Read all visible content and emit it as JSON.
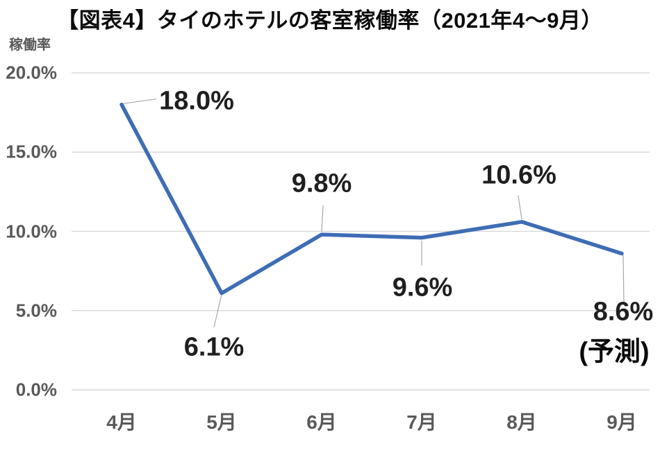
{
  "chart_data": {
    "type": "line",
    "title": "【図表4】タイのホテルの客室稼働率（2021年4〜9月）",
    "ylabel": "稼働率",
    "xlabel": "",
    "categories": [
      "4月",
      "5月",
      "6月",
      "7月",
      "8月",
      "9月"
    ],
    "values": [
      18.0,
      6.1,
      9.8,
      9.6,
      10.6,
      8.6
    ],
    "data_labels": [
      "18.0%",
      "6.1%",
      "9.8%",
      "9.6%",
      "10.6%",
      "8.6%"
    ],
    "label_placements": [
      "right",
      "below",
      "above",
      "below",
      "above",
      "below"
    ],
    "forecast_note": "(予測)",
    "forecast_index": 5,
    "ylim": [
      0,
      20
    ],
    "yticks": [
      0,
      5,
      10,
      15,
      20
    ],
    "ytick_labels": [
      "0.0%",
      "5.0%",
      "10.0%",
      "15.0%",
      "20.0%"
    ],
    "grid": true,
    "legend": "none",
    "colors": {
      "line": "#3E6DB5",
      "grid": "#D9D9D9",
      "axis_text": "#595959",
      "data_label_text": "#1F1F1F",
      "leader_line": "#A6A6A6",
      "title_text": "#0B0B0B",
      "background": "#FFFFFF"
    }
  }
}
